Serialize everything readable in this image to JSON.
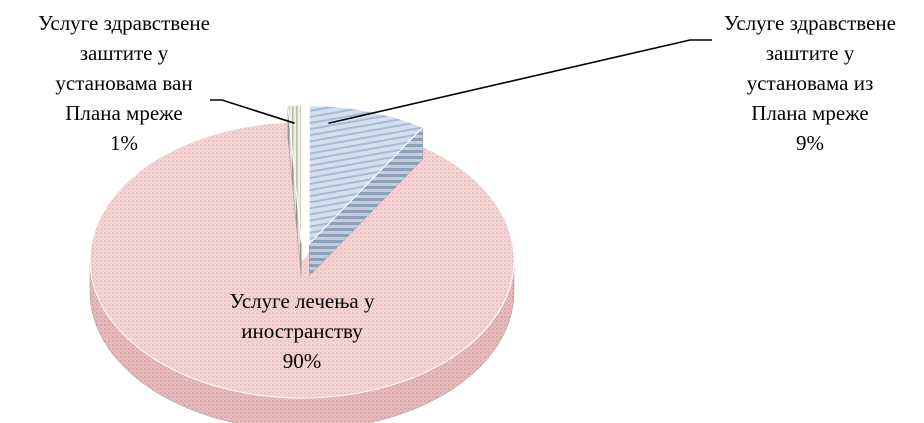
{
  "chart_data": {
    "type": "pie",
    "style": "3d-exploded",
    "slices": [
      {
        "name_lines": [
          "Услуге здравствене",
          "заштите у",
          "установама из",
          "Плана мреже"
        ],
        "value": 9,
        "label": "9%",
        "color": "#c5d4e8",
        "pattern": "horizontal-stripes"
      },
      {
        "name_lines": [
          "Услуге лечења у",
          "иностранству"
        ],
        "value": 90,
        "label": "90%",
        "color": "#f1d2d2",
        "pattern": "fine-dots"
      },
      {
        "name_lines": [
          "Услуге здравствене",
          "заштите у",
          "установама ван",
          "Плана мреже"
        ],
        "value": 1,
        "label": "1%",
        "color": "#e6ead8",
        "pattern": "vertical-stripes"
      }
    ],
    "legend": "none",
    "labels": "on-slices-with-leader-lines"
  }
}
